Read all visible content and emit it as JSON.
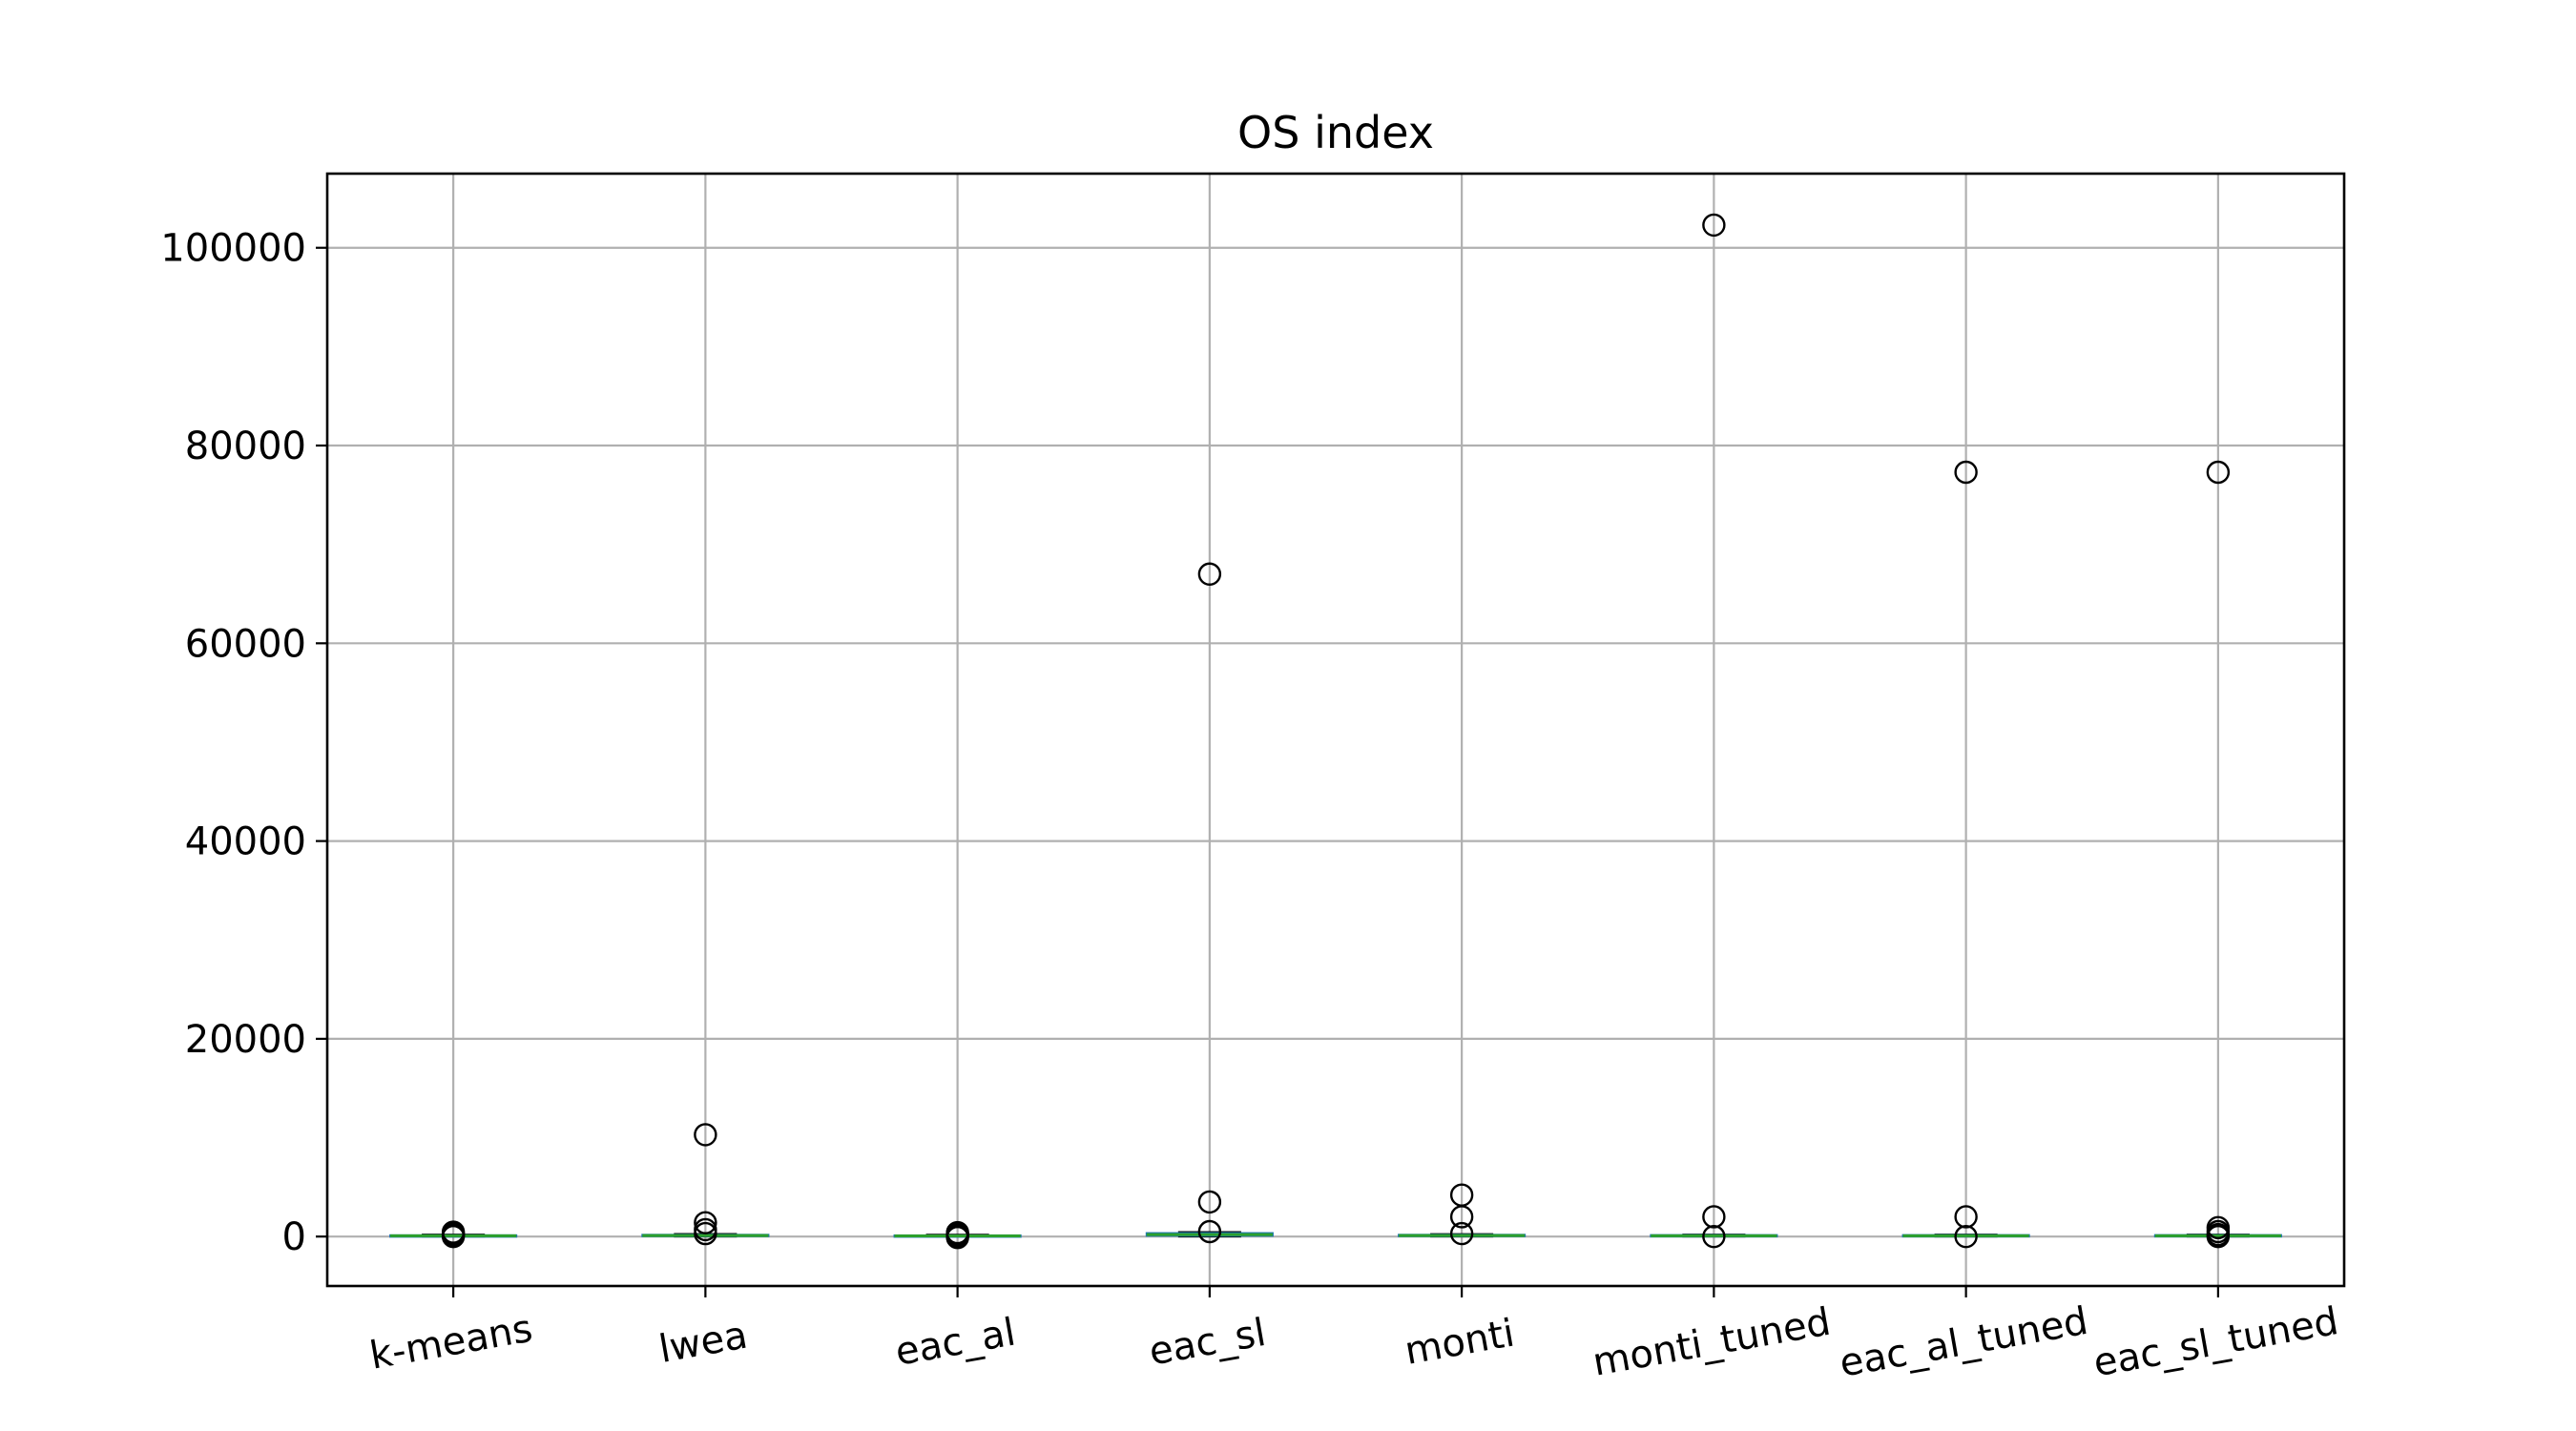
{
  "chart_data": {
    "type": "box",
    "title": "OS index",
    "xlabel": "",
    "ylabel": "",
    "ylim": [
      -5000,
      107500
    ],
    "yticks": [
      0,
      20000,
      40000,
      60000,
      80000,
      100000
    ],
    "ytick_labels": [
      "0",
      "20000",
      "40000",
      "60000",
      "80000",
      "100000"
    ],
    "categories": [
      "k-means",
      "lwea",
      "eac_al",
      "eac_sl",
      "monti",
      "monti_tuned",
      "eac_al_tuned",
      "eac_sl_tuned"
    ],
    "grid": true,
    "colors": {
      "median": "#2ca02c",
      "box": "#1f77b4",
      "grid": "#b0b0b0",
      "outlier": "#000000"
    },
    "boxes": [
      {
        "category": "k-means",
        "q1": 40,
        "median": 80,
        "q3": 130,
        "whisker_low": 0,
        "whisker_high": 200,
        "outliers": [
          0,
          150,
          300,
          450
        ]
      },
      {
        "category": "lwea",
        "q1": 40,
        "median": 100,
        "q3": 180,
        "whisker_low": 0,
        "whisker_high": 260,
        "outliers": [
          300,
          700,
          1400,
          10300
        ]
      },
      {
        "category": "eac_al",
        "q1": 30,
        "median": 60,
        "q3": 120,
        "whisker_low": 0,
        "whisker_high": 180,
        "outliers": [
          -100,
          100,
          200,
          300,
          400
        ]
      },
      {
        "category": "eac_sl",
        "q1": 80,
        "median": 200,
        "q3": 350,
        "whisker_low": 0,
        "whisker_high": 450,
        "outliers": [
          500,
          3500,
          67000
        ]
      },
      {
        "category": "monti",
        "q1": 40,
        "median": 100,
        "q3": 180,
        "whisker_low": 0,
        "whisker_high": 250,
        "outliers": [
          300,
          2000,
          4200
        ]
      },
      {
        "category": "monti_tuned",
        "q1": 30,
        "median": 80,
        "q3": 150,
        "whisker_low": 0,
        "whisker_high": 200,
        "outliers": [
          0,
          2000,
          102300
        ]
      },
      {
        "category": "eac_al_tuned",
        "q1": 30,
        "median": 80,
        "q3": 150,
        "whisker_low": 0,
        "whisker_high": 200,
        "outliers": [
          0,
          2000,
          77300
        ]
      },
      {
        "category": "eac_sl_tuned",
        "q1": 30,
        "median": 80,
        "q3": 150,
        "whisker_low": 0,
        "whisker_high": 200,
        "outliers": [
          0,
          200,
          500,
          900,
          77300
        ]
      }
    ]
  }
}
